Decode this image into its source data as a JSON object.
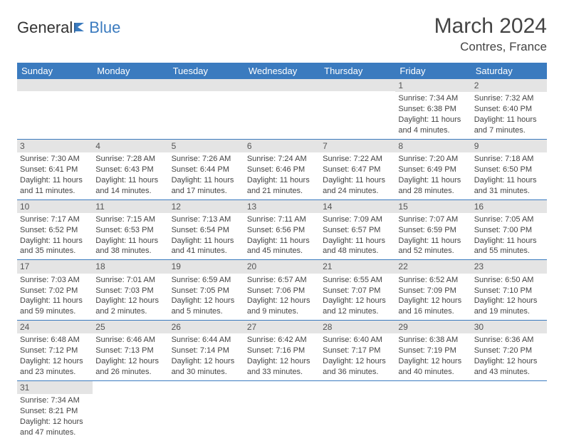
{
  "logo": {
    "part1": "General",
    "part2": "Blue"
  },
  "title": "March 2024",
  "location": "Contres, France",
  "colors": {
    "header_bg": "#3b7bbf",
    "header_text": "#ffffff",
    "daynum_bg": "#e4e4e4",
    "row_border": "#3b7bbf",
    "body_text": "#444444"
  },
  "weekdays": [
    "Sunday",
    "Monday",
    "Tuesday",
    "Wednesday",
    "Thursday",
    "Friday",
    "Saturday"
  ],
  "weeks": [
    [
      null,
      null,
      null,
      null,
      null,
      {
        "n": "1",
        "sr": "Sunrise: 7:34 AM",
        "ss": "Sunset: 6:38 PM",
        "d1": "Daylight: 11 hours",
        "d2": "and 4 minutes."
      },
      {
        "n": "2",
        "sr": "Sunrise: 7:32 AM",
        "ss": "Sunset: 6:40 PM",
        "d1": "Daylight: 11 hours",
        "d2": "and 7 minutes."
      }
    ],
    [
      {
        "n": "3",
        "sr": "Sunrise: 7:30 AM",
        "ss": "Sunset: 6:41 PM",
        "d1": "Daylight: 11 hours",
        "d2": "and 11 minutes."
      },
      {
        "n": "4",
        "sr": "Sunrise: 7:28 AM",
        "ss": "Sunset: 6:43 PM",
        "d1": "Daylight: 11 hours",
        "d2": "and 14 minutes."
      },
      {
        "n": "5",
        "sr": "Sunrise: 7:26 AM",
        "ss": "Sunset: 6:44 PM",
        "d1": "Daylight: 11 hours",
        "d2": "and 17 minutes."
      },
      {
        "n": "6",
        "sr": "Sunrise: 7:24 AM",
        "ss": "Sunset: 6:46 PM",
        "d1": "Daylight: 11 hours",
        "d2": "and 21 minutes."
      },
      {
        "n": "7",
        "sr": "Sunrise: 7:22 AM",
        "ss": "Sunset: 6:47 PM",
        "d1": "Daylight: 11 hours",
        "d2": "and 24 minutes."
      },
      {
        "n": "8",
        "sr": "Sunrise: 7:20 AM",
        "ss": "Sunset: 6:49 PM",
        "d1": "Daylight: 11 hours",
        "d2": "and 28 minutes."
      },
      {
        "n": "9",
        "sr": "Sunrise: 7:18 AM",
        "ss": "Sunset: 6:50 PM",
        "d1": "Daylight: 11 hours",
        "d2": "and 31 minutes."
      }
    ],
    [
      {
        "n": "10",
        "sr": "Sunrise: 7:17 AM",
        "ss": "Sunset: 6:52 PM",
        "d1": "Daylight: 11 hours",
        "d2": "and 35 minutes."
      },
      {
        "n": "11",
        "sr": "Sunrise: 7:15 AM",
        "ss": "Sunset: 6:53 PM",
        "d1": "Daylight: 11 hours",
        "d2": "and 38 minutes."
      },
      {
        "n": "12",
        "sr": "Sunrise: 7:13 AM",
        "ss": "Sunset: 6:54 PM",
        "d1": "Daylight: 11 hours",
        "d2": "and 41 minutes."
      },
      {
        "n": "13",
        "sr": "Sunrise: 7:11 AM",
        "ss": "Sunset: 6:56 PM",
        "d1": "Daylight: 11 hours",
        "d2": "and 45 minutes."
      },
      {
        "n": "14",
        "sr": "Sunrise: 7:09 AM",
        "ss": "Sunset: 6:57 PM",
        "d1": "Daylight: 11 hours",
        "d2": "and 48 minutes."
      },
      {
        "n": "15",
        "sr": "Sunrise: 7:07 AM",
        "ss": "Sunset: 6:59 PM",
        "d1": "Daylight: 11 hours",
        "d2": "and 52 minutes."
      },
      {
        "n": "16",
        "sr": "Sunrise: 7:05 AM",
        "ss": "Sunset: 7:00 PM",
        "d1": "Daylight: 11 hours",
        "d2": "and 55 minutes."
      }
    ],
    [
      {
        "n": "17",
        "sr": "Sunrise: 7:03 AM",
        "ss": "Sunset: 7:02 PM",
        "d1": "Daylight: 11 hours",
        "d2": "and 59 minutes."
      },
      {
        "n": "18",
        "sr": "Sunrise: 7:01 AM",
        "ss": "Sunset: 7:03 PM",
        "d1": "Daylight: 12 hours",
        "d2": "and 2 minutes."
      },
      {
        "n": "19",
        "sr": "Sunrise: 6:59 AM",
        "ss": "Sunset: 7:05 PM",
        "d1": "Daylight: 12 hours",
        "d2": "and 5 minutes."
      },
      {
        "n": "20",
        "sr": "Sunrise: 6:57 AM",
        "ss": "Sunset: 7:06 PM",
        "d1": "Daylight: 12 hours",
        "d2": "and 9 minutes."
      },
      {
        "n": "21",
        "sr": "Sunrise: 6:55 AM",
        "ss": "Sunset: 7:07 PM",
        "d1": "Daylight: 12 hours",
        "d2": "and 12 minutes."
      },
      {
        "n": "22",
        "sr": "Sunrise: 6:52 AM",
        "ss": "Sunset: 7:09 PM",
        "d1": "Daylight: 12 hours",
        "d2": "and 16 minutes."
      },
      {
        "n": "23",
        "sr": "Sunrise: 6:50 AM",
        "ss": "Sunset: 7:10 PM",
        "d1": "Daylight: 12 hours",
        "d2": "and 19 minutes."
      }
    ],
    [
      {
        "n": "24",
        "sr": "Sunrise: 6:48 AM",
        "ss": "Sunset: 7:12 PM",
        "d1": "Daylight: 12 hours",
        "d2": "and 23 minutes."
      },
      {
        "n": "25",
        "sr": "Sunrise: 6:46 AM",
        "ss": "Sunset: 7:13 PM",
        "d1": "Daylight: 12 hours",
        "d2": "and 26 minutes."
      },
      {
        "n": "26",
        "sr": "Sunrise: 6:44 AM",
        "ss": "Sunset: 7:14 PM",
        "d1": "Daylight: 12 hours",
        "d2": "and 30 minutes."
      },
      {
        "n": "27",
        "sr": "Sunrise: 6:42 AM",
        "ss": "Sunset: 7:16 PM",
        "d1": "Daylight: 12 hours",
        "d2": "and 33 minutes."
      },
      {
        "n": "28",
        "sr": "Sunrise: 6:40 AM",
        "ss": "Sunset: 7:17 PM",
        "d1": "Daylight: 12 hours",
        "d2": "and 36 minutes."
      },
      {
        "n": "29",
        "sr": "Sunrise: 6:38 AM",
        "ss": "Sunset: 7:19 PM",
        "d1": "Daylight: 12 hours",
        "d2": "and 40 minutes."
      },
      {
        "n": "30",
        "sr": "Sunrise: 6:36 AM",
        "ss": "Sunset: 7:20 PM",
        "d1": "Daylight: 12 hours",
        "d2": "and 43 minutes."
      }
    ],
    [
      {
        "n": "31",
        "sr": "Sunrise: 7:34 AM",
        "ss": "Sunset: 8:21 PM",
        "d1": "Daylight: 12 hours",
        "d2": "and 47 minutes."
      },
      null,
      null,
      null,
      null,
      null,
      null
    ]
  ]
}
